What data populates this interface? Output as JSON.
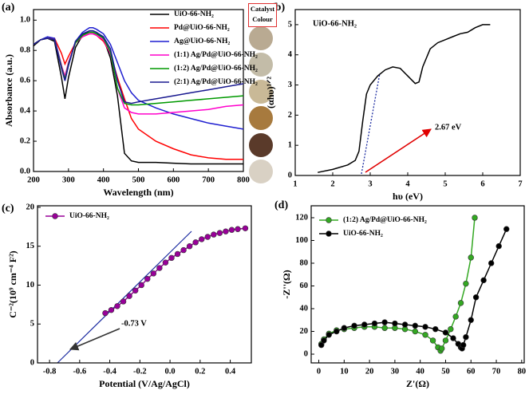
{
  "chart_data": [
    {
      "type": "line",
      "label": "(a)",
      "side_label": "Catalyst Colour",
      "x_label": "Wavelength (nm)",
      "y_label": "Absorbance (a.u.)",
      "xlim": [
        200,
        800
      ],
      "ylim": [
        0,
        1.07
      ],
      "xticks": [
        200,
        300,
        400,
        500,
        600,
        700,
        800
      ],
      "yticks": [
        {
          "value": 0,
          "label": "0.0"
        },
        0.2,
        0.4,
        0.6,
        0.8,
        {
          "value": 1,
          "label": "1.0"
        }
      ],
      "x": [
        200,
        220,
        240,
        260,
        280,
        290,
        300,
        320,
        340,
        360,
        370,
        380,
        400,
        420,
        440,
        460,
        480,
        500,
        550,
        600,
        650,
        700,
        750,
        800
      ],
      "series": [
        {
          "name": "UiO-66-NH₂",
          "color": "#000000",
          "values": [
            0.83,
            0.87,
            0.88,
            0.86,
            0.62,
            0.48,
            0.62,
            0.82,
            0.9,
            0.93,
            0.93,
            0.92,
            0.88,
            0.75,
            0.5,
            0.12,
            0.07,
            0.06,
            0.06,
            0.055,
            0.05,
            0.05,
            0.05,
            0.05
          ]
        },
        {
          "name": "Pd@UiO-66-NH₂",
          "color": "#ff0000",
          "values": [
            0.84,
            0.87,
            0.88,
            0.88,
            0.78,
            0.71,
            0.76,
            0.85,
            0.89,
            0.91,
            0.91,
            0.9,
            0.86,
            0.78,
            0.62,
            0.48,
            0.35,
            0.28,
            0.2,
            0.15,
            0.11,
            0.09,
            0.08,
            0.08
          ]
        },
        {
          "name": "Ag@UiO-66-NH₂",
          "color": "#1f1fd0",
          "values": [
            0.84,
            0.87,
            0.89,
            0.88,
            0.7,
            0.6,
            0.7,
            0.86,
            0.92,
            0.95,
            0.95,
            0.94,
            0.91,
            0.84,
            0.72,
            0.6,
            0.52,
            0.47,
            0.42,
            0.38,
            0.35,
            0.32,
            0.3,
            0.28
          ]
        },
        {
          "name": "(1:1) Ag/Pd@UiO-66-NH₂",
          "color": "#ff00cc",
          "values": [
            0.84,
            0.87,
            0.88,
            0.87,
            0.7,
            0.63,
            0.72,
            0.85,
            0.89,
            0.91,
            0.91,
            0.9,
            0.87,
            0.78,
            0.55,
            0.42,
            0.39,
            0.38,
            0.38,
            0.39,
            0.4,
            0.41,
            0.43,
            0.44
          ]
        },
        {
          "name": "(1:2) Ag/Pd@UiO-66-NH₂",
          "color": "#009900",
          "values": [
            0.84,
            0.87,
            0.88,
            0.87,
            0.69,
            0.61,
            0.71,
            0.85,
            0.9,
            0.92,
            0.92,
            0.91,
            0.88,
            0.79,
            0.55,
            0.45,
            0.44,
            0.44,
            0.45,
            0.46,
            0.47,
            0.48,
            0.49,
            0.5
          ]
        },
        {
          "name": "(2:1) Ag/Pd@UiO-66-NH₂",
          "color": "#1a1a90",
          "values": [
            0.84,
            0.87,
            0.88,
            0.87,
            0.68,
            0.6,
            0.7,
            0.86,
            0.91,
            0.93,
            0.93,
            0.92,
            0.89,
            0.81,
            0.6,
            0.46,
            0.45,
            0.46,
            0.48,
            0.5,
            0.52,
            0.54,
            0.56,
            0.58
          ]
        }
      ]
    },
    {
      "type": "line",
      "label": "(b)",
      "inset_label": "UiO-66-NH₂",
      "annotation": "2.67 eV",
      "x_label": "hυ (eV)",
      "y_label": "(αhυ)¹ᐟ²",
      "xlim": [
        1,
        7
      ],
      "ylim": [
        0,
        5.5
      ],
      "xticks": [
        1,
        2,
        3,
        4,
        5,
        6,
        7
      ],
      "yticks": [
        0,
        1,
        2,
        3,
        4,
        5
      ],
      "x": [
        1.6,
        2.0,
        2.4,
        2.6,
        2.7,
        2.8,
        2.9,
        3.0,
        3.2,
        3.4,
        3.6,
        3.8,
        4.0,
        4.2,
        4.3,
        4.4,
        4.6,
        4.8,
        5.0,
        5.2,
        5.4,
        5.6,
        5.8,
        6.0,
        6.2
      ],
      "series": [
        {
          "color": "#000000",
          "values": [
            0.1,
            0.2,
            0.35,
            0.5,
            0.8,
            1.8,
            2.7,
            3.0,
            3.3,
            3.5,
            3.6,
            3.55,
            3.3,
            3.05,
            3.1,
            3.6,
            4.2,
            4.4,
            4.5,
            4.6,
            4.7,
            4.75,
            4.9,
            5.0,
            5.0
          ]
        }
      ]
    },
    {
      "type": "line",
      "markers": true,
      "label": "(c)",
      "annotation": "-0.73 V",
      "x_label": "Potential (V/Ag/AgCl)",
      "y_label": "C⁻²(10⁹ cm⁻⁴ F²)",
      "xlim": [
        -0.88,
        0.54
      ],
      "ylim": [
        0,
        20.2
      ],
      "xticks": [
        -0.8,
        -0.6,
        -0.4,
        -0.2,
        {
          "value": 0,
          "label": "0.0"
        },
        0.2,
        0.4
      ],
      "yticks": [
        0,
        5,
        10,
        15,
        20
      ],
      "series": [
        {
          "name": "UiO-66-NH₂",
          "color": "#990099",
          "x": [
            -0.43,
            -0.39,
            -0.35,
            -0.31,
            -0.27,
            -0.23,
            -0.19,
            -0.15,
            -0.11,
            -0.07,
            -0.03,
            0.01,
            0.05,
            0.09,
            0.13,
            0.17,
            0.21,
            0.25,
            0.29,
            0.33,
            0.37,
            0.41,
            0.45,
            0.5
          ],
          "values": [
            6.4,
            6.8,
            7.3,
            7.9,
            8.6,
            9.3,
            10.0,
            10.8,
            11.5,
            12.2,
            12.9,
            13.5,
            14.0,
            14.5,
            15.0,
            15.5,
            15.9,
            16.2,
            16.5,
            16.7,
            16.9,
            17.1,
            17.2,
            17.3
          ]
        }
      ]
    },
    {
      "type": "line",
      "markers": true,
      "label": "(d)",
      "x_label": "Z'(Ω)",
      "y_label": "-Z''(Ω)",
      "xlim": [
        -3,
        81
      ],
      "ylim": [
        -7.7,
        130.5
      ],
      "xticks": [
        0,
        10,
        20,
        30,
        40,
        50,
        60,
        70,
        80
      ],
      "yticks": [
        0,
        20,
        40,
        60,
        80,
        100,
        120
      ],
      "series": [
        {
          "name": "(1:2) Ag/Pd@UiO-66-NH₂",
          "color": "#33a822",
          "x": [
            1,
            2,
            4,
            7,
            10,
            14,
            18,
            22,
            26,
            30,
            34,
            38,
            42,
            45,
            47,
            48,
            48.5,
            50,
            52,
            54,
            56,
            58,
            60,
            61.5
          ],
          "values": [
            9,
            13,
            18,
            21,
            22,
            23,
            24,
            24,
            23,
            23,
            22,
            20,
            17,
            12,
            6,
            3,
            5,
            12,
            22,
            33,
            45,
            62,
            85,
            120
          ]
        },
        {
          "name": "UiO-66-NH₂",
          "color": "#000000",
          "x": [
            1,
            2,
            4,
            7,
            10,
            14,
            18,
            22,
            26,
            30,
            34,
            38,
            42,
            46,
            50,
            53,
            55,
            56,
            56.5,
            57,
            58,
            60,
            62,
            65,
            68,
            71,
            74
          ],
          "values": [
            8,
            12,
            17,
            20,
            23,
            25,
            26,
            27,
            28,
            27,
            26,
            25,
            24,
            22,
            19,
            14,
            9,
            6,
            5,
            8,
            15,
            30,
            50,
            65,
            80,
            95,
            110
          ]
        }
      ]
    }
  ]
}
